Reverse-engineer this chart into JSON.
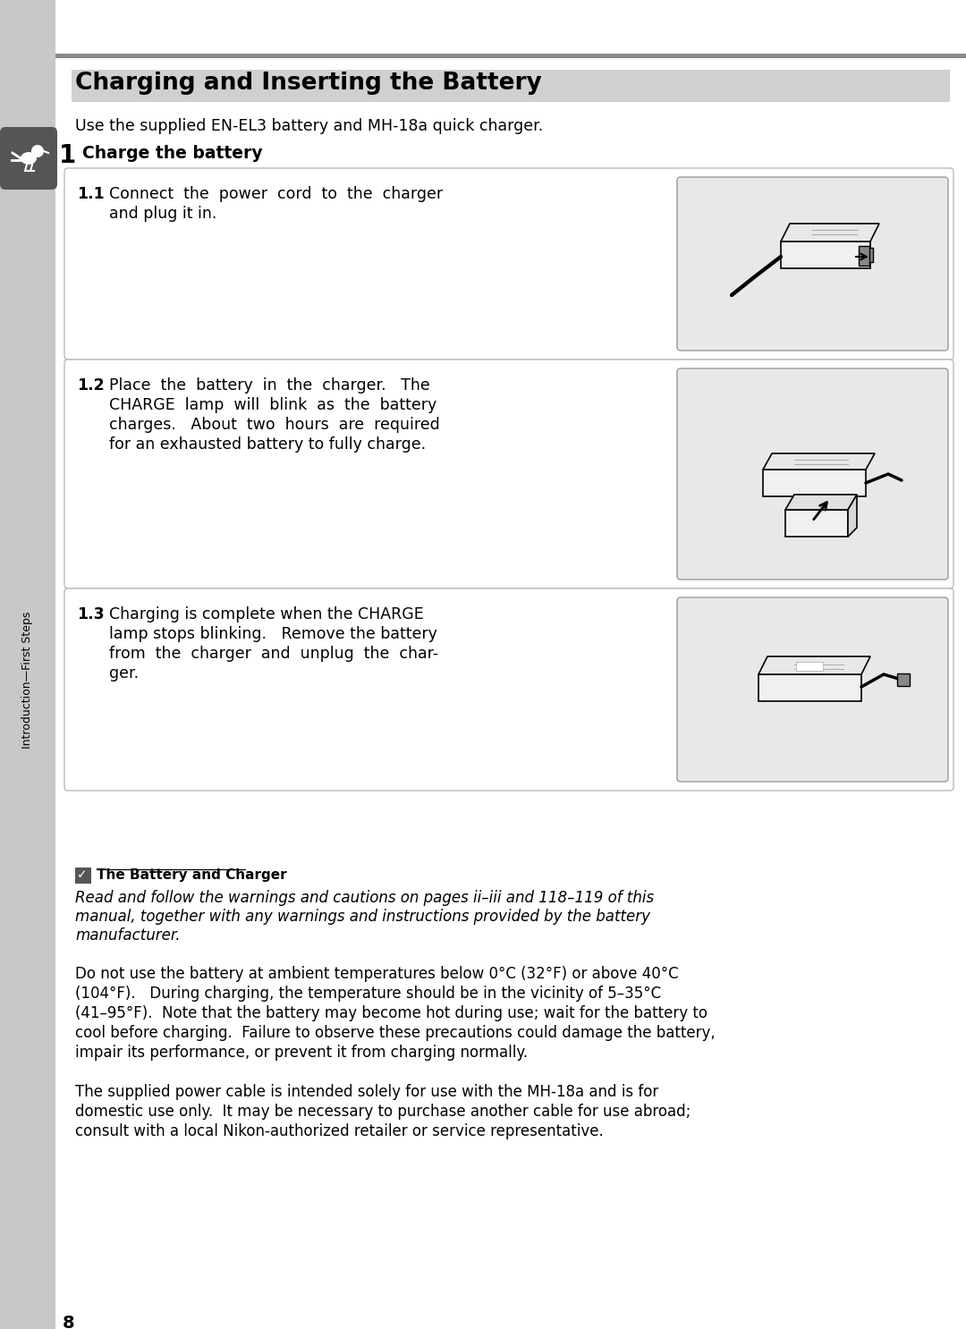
{
  "title": "Charging and Inserting the Battery",
  "subtitle": "Use the supplied EN-EL3 battery and MH-18a quick charger.",
  "step_number": "1",
  "step_title": "Charge the battery",
  "sec11_num": "1.1",
  "sec11_line1": "Connect  the  power  cord  to  the  charger",
  "sec11_line2": "and plug it in.",
  "sec12_num": "1.2",
  "sec12_line1": "Place  the  battery  in  the  charger.   The",
  "sec12_line2": "CHARGE  lamp  will  blink  as  the  battery",
  "sec12_line3": "charges.   About  two  hours  are  required",
  "sec12_line4": "for an exhausted battery to fully charge.",
  "sec13_num": "1.3",
  "sec13_line1": "Charging is complete when the CHARGE",
  "sec13_line2": "lamp stops blinking.   Remove the battery",
  "sec13_line3": "from  the  charger  and  unplug  the  char-",
  "sec13_line4": "ger.",
  "note_title": "The Battery and Charger",
  "note_italic_line1": "Read and follow the warnings and cautions on pages ii–iii and 118–119 of this",
  "note_italic_line2": "manual, together with any warnings and instructions provided by the battery",
  "note_italic_line3": "manufacturer.",
  "para1_line1": "Do not use the battery at ambient temperatures below 0°C (32°F) or above 40°C",
  "para1_line2": "(104°F).   During charging, the temperature should be in the vicinity of 5–35°C",
  "para1_line3": "(41–95°F).  Note that the battery may become hot during use; wait for the battery to",
  "para1_line4": "cool before charging.  Failure to observe these precautions could damage the battery,",
  "para1_line5": "impair its performance, or prevent it from charging normally.",
  "para2_line1": "The supplied power cable is intended solely for use with the MH-18a and is for",
  "para2_line2": "domestic use only.  It may be necessary to purchase another cable for use abroad;",
  "para2_line3": "consult with a local Nikon-authorized retailer or service representative.",
  "page_number": "8",
  "sidebar_text": "Introduction—First Steps",
  "bg_white": "#ffffff",
  "bg_page": "#f5f5f5",
  "sidebar_color": "#c8c8c8",
  "sidebar_dark": "#555555",
  "box_bg": "#e8e8e8",
  "title_highlight": "#d0d0d0",
  "rule_color": "#888888",
  "section_border": "#bbbbbb",
  "img_border": "#999999"
}
